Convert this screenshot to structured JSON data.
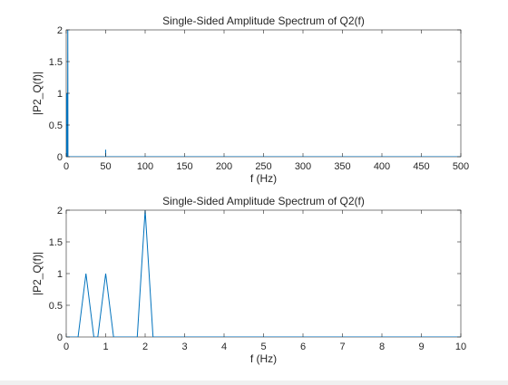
{
  "window": {
    "background": "#ffffff"
  },
  "chart_data": [
    {
      "type": "line",
      "title": "Single-Sided Amplitude Spectrum of Q2(f)",
      "xlabel": "f (Hz)",
      "ylabel": "|P2_Q(f)|",
      "xlim": [
        0,
        500
      ],
      "ylim": [
        0,
        2
      ],
      "xticks": [
        0,
        50,
        100,
        150,
        200,
        250,
        300,
        350,
        400,
        450,
        500
      ],
      "yticks": [
        0,
        0.5,
        1,
        1.5,
        2
      ],
      "xtick_labels": [
        "0",
        "50",
        "100",
        "150",
        "200",
        "250",
        "300",
        "350",
        "400",
        "450",
        "500"
      ],
      "ytick_labels": [
        "0",
        "0.5",
        "1",
        "1.5",
        "2"
      ],
      "grid": false,
      "line_color": "#0072BD",
      "series": [
        {
          "x": [
            0,
            0.5,
            0.5,
            0.7,
            1,
            1.2,
            1.8,
            2,
            2.2,
            10,
            50,
            50,
            50,
            60,
            500
          ],
          "y": [
            0,
            1,
            0,
            0,
            1,
            0,
            0,
            2,
            0,
            0,
            0,
            0.11,
            0,
            0,
            0
          ]
        }
      ]
    },
    {
      "type": "line",
      "title": "Single-Sided Amplitude Spectrum of Q2(f)",
      "xlabel": "f (Hz)",
      "ylabel": "|P2_Q(f)|",
      "xlim": [
        0,
        10
      ],
      "ylim": [
        0,
        2
      ],
      "xticks": [
        0,
        1,
        2,
        3,
        4,
        5,
        6,
        7,
        8,
        9,
        10
      ],
      "yticks": [
        0,
        0.5,
        1,
        1.5,
        2
      ],
      "xtick_labels": [
        "0",
        "1",
        "2",
        "3",
        "4",
        "5",
        "6",
        "7",
        "8",
        "9",
        "10"
      ],
      "ytick_labels": [
        "0",
        "0.5",
        "1",
        "1.5",
        "2"
      ],
      "grid": false,
      "line_color": "#0072BD",
      "series": [
        {
          "x": [
            0,
            0.3,
            0.5,
            0.7,
            0.8,
            1.0,
            1.2,
            1.8,
            2.0,
            2.2,
            10
          ],
          "y": [
            0,
            0,
            1,
            0,
            0,
            1,
            0,
            0,
            2,
            0,
            0
          ]
        }
      ]
    }
  ]
}
